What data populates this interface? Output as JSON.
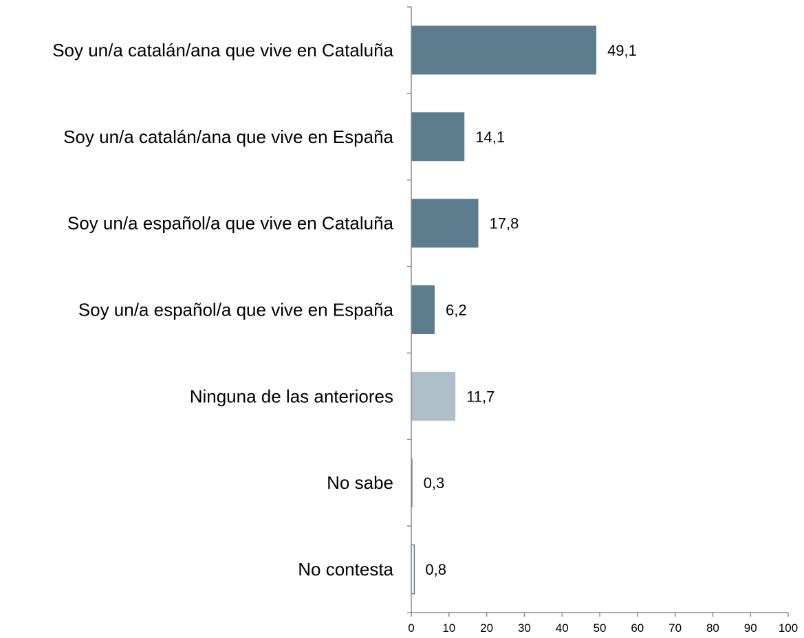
{
  "chart_data": {
    "type": "bar",
    "orientation": "horizontal",
    "categories": [
      "Soy un/a catalán/ana que vive en Cataluña",
      "Soy un/a catalán/ana que vive en España",
      "Soy un/a español/a que vive en Cataluña",
      "Soy un/a español/a que vive en España",
      "Ninguna de las anteriores",
      "No sabe",
      "No contesta"
    ],
    "values": [
      49.1,
      14.1,
      17.8,
      6.2,
      11.7,
      0.3,
      0.8
    ],
    "value_labels": [
      "49,1",
      "14,1",
      "17,8",
      "6,2",
      "11,7",
      "0,3",
      "0,8"
    ],
    "bar_colors": [
      "#5d7d8f",
      "#5d7d8f",
      "#5d7d8f",
      "#5d7d8f",
      "#afbfc9",
      "#5d7d8f",
      "#ffffff"
    ],
    "bar_outline": "#5d7d8f",
    "xlim": [
      0,
      100
    ],
    "xticks": [
      0,
      10,
      20,
      30,
      40,
      50,
      60,
      70,
      80,
      90,
      100
    ],
    "title": "",
    "xlabel": "",
    "ylabel": "",
    "grid": false,
    "legend": "none"
  }
}
